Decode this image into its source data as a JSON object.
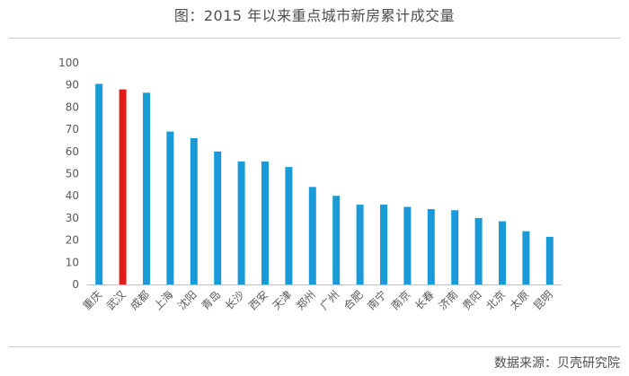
{
  "title": "图：2015 年以来重点城市新房累计成交量",
  "source": "数据来源：贝壳研究院",
  "colors": {
    "bar": "#1a9ad6",
    "highlight": "#e31b1b",
    "axis": "#bfbfbf"
  },
  "chart_data": {
    "type": "bar",
    "title": "图：2015 年以来重点城市新房累计成交量",
    "xlabel": "",
    "ylabel": "",
    "ylim": [
      0,
      100
    ],
    "yticks": [
      0,
      10,
      20,
      30,
      40,
      50,
      60,
      70,
      80,
      90,
      100
    ],
    "grid": false,
    "highlight_category": "武汉",
    "categories": [
      "重庆",
      "武汉",
      "成都",
      "上海",
      "沈阳",
      "青岛",
      "长沙",
      "西安",
      "天津",
      "郑州",
      "广州",
      "合肥",
      "南宁",
      "南京",
      "长春",
      "济南",
      "贵阳",
      "北京",
      "太原",
      "昆明"
    ],
    "values": [
      90.5,
      88,
      86.5,
      69,
      66,
      60,
      55.5,
      55.5,
      53,
      44,
      40,
      36,
      36,
      35,
      34,
      33.5,
      30,
      28.5,
      24,
      21.5
    ]
  }
}
